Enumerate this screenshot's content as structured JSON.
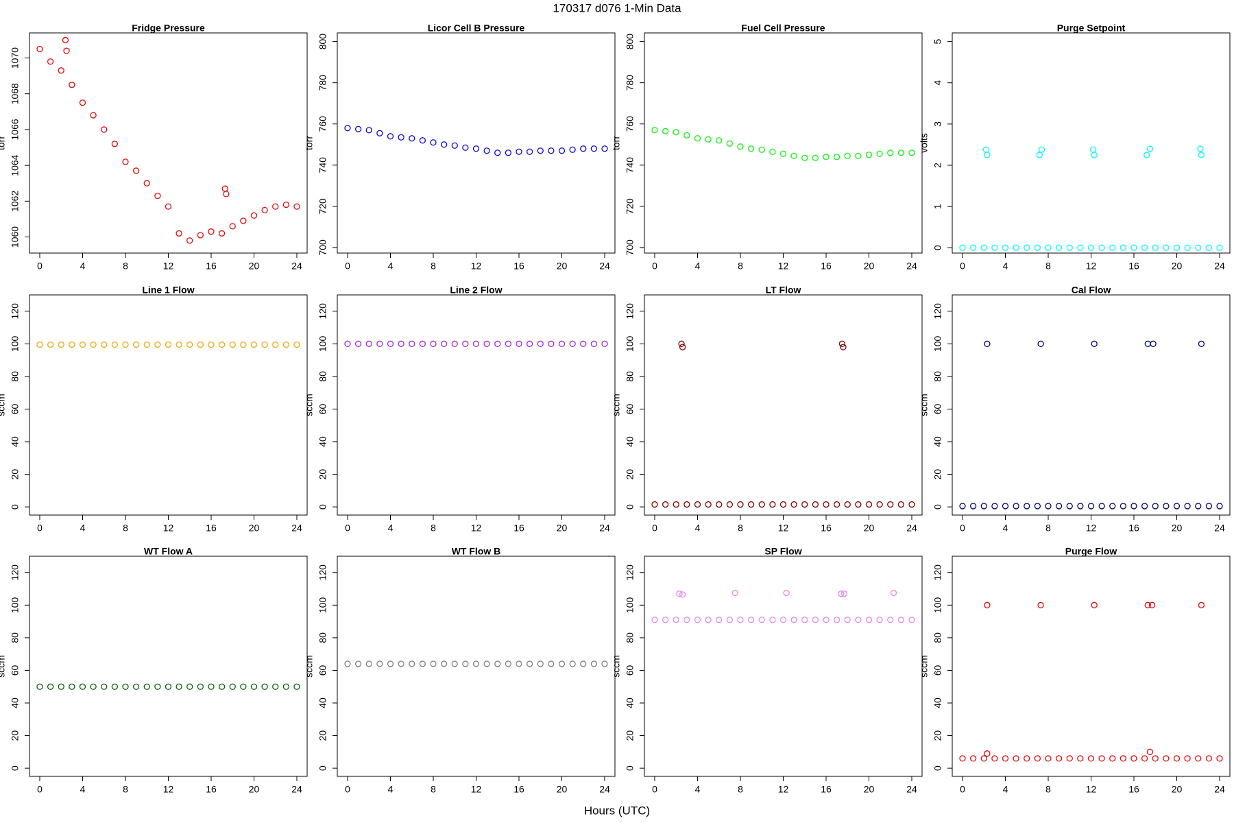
{
  "title": "170317   d076   1-Min Data",
  "x_label": "Hours (UTC)",
  "chart_data": [
    {
      "type": "scatter",
      "title": "Fridge Pressure",
      "y_label": "torr",
      "color": "#ff0000",
      "x": [
        0,
        1,
        2,
        3,
        4,
        5,
        6,
        7,
        8,
        9,
        10,
        11,
        12,
        13,
        14,
        15,
        16,
        17,
        18,
        19,
        20,
        21,
        22,
        23,
        24,
        2.4,
        2.5,
        17.3,
        17.4
      ],
      "values": [
        1070.5,
        1069.8,
        1069.3,
        1068.5,
        1067.5,
        1066.8,
        1066.0,
        1065.2,
        1064.2,
        1063.7,
        1063.0,
        1062.3,
        1061.7,
        1060.2,
        1059.8,
        1060.1,
        1060.3,
        1060.2,
        1060.6,
        1060.9,
        1061.2,
        1061.5,
        1061.7,
        1061.8,
        1061.7,
        1071.0,
        1070.4,
        1062.7,
        1062.4
      ],
      "xlim": [
        -0.96,
        24.96
      ],
      "xticks": [
        0,
        4,
        8,
        12,
        16,
        20,
        24
      ],
      "ylim": [
        1059.1,
        1071.4
      ],
      "yticks": [
        1060,
        1062,
        1064,
        1066,
        1068,
        1070
      ]
    },
    {
      "type": "scatter",
      "title": "Licor Cell B Pressure",
      "y_label": "torr",
      "color": "#0000ff",
      "x": [
        0,
        1,
        2,
        3,
        4,
        5,
        6,
        7,
        8,
        9,
        10,
        11,
        12,
        13,
        14,
        15,
        16,
        17,
        18,
        19,
        20,
        21,
        22,
        23,
        24
      ],
      "values": [
        758,
        757.5,
        757,
        755.5,
        754,
        753.5,
        753,
        752,
        751,
        750,
        749.5,
        748.5,
        748,
        747,
        746,
        746,
        746.5,
        746.5,
        747,
        747,
        747,
        747.5,
        748,
        748,
        748
      ],
      "xlim": [
        -0.96,
        24.96
      ],
      "xticks": [
        0,
        4,
        8,
        12,
        16,
        20,
        24
      ],
      "ylim": [
        697.3,
        804.2
      ],
      "yticks": [
        700,
        720,
        740,
        760,
        780,
        800
      ]
    },
    {
      "type": "scatter",
      "title": "Fuel Cell Pressure",
      "y_label": "torr",
      "color": "#00ff00",
      "x": [
        0,
        1,
        2,
        3,
        4,
        5,
        6,
        7,
        8,
        9,
        10,
        11,
        12,
        13,
        14,
        15,
        16,
        17,
        18,
        19,
        20,
        21,
        22,
        23,
        24
      ],
      "values": [
        757,
        756.5,
        756,
        754.5,
        753,
        752.5,
        752,
        750.5,
        749,
        748,
        747.5,
        746.5,
        745.5,
        744.5,
        743.5,
        743.5,
        744,
        744,
        744.5,
        744.5,
        745,
        745.5,
        746,
        746,
        746
      ],
      "xlim": [
        -0.96,
        24.96
      ],
      "xticks": [
        0,
        4,
        8,
        12,
        16,
        20,
        24
      ],
      "ylim": [
        697.3,
        804.2
      ],
      "yticks": [
        700,
        720,
        740,
        760,
        780,
        800
      ]
    },
    {
      "type": "scatter",
      "title": "Purge Setpoint",
      "y_label": "volts",
      "color": "#00ffff",
      "x": [
        0,
        1,
        2,
        3,
        4,
        5,
        6,
        7,
        8,
        9,
        10,
        11,
        12,
        13,
        14,
        15,
        16,
        17,
        18,
        19,
        20,
        21,
        22,
        23,
        24,
        2.2,
        2.3,
        7.2,
        7.4,
        12.2,
        12.3,
        17.2,
        17.5,
        22.2,
        22.3
      ],
      "values": [
        0,
        0,
        0,
        0,
        0,
        0,
        0,
        0,
        0,
        0,
        0,
        0,
        0,
        0,
        0,
        0,
        0,
        0,
        0,
        0,
        0,
        0,
        0,
        0,
        0,
        2.38,
        2.25,
        2.25,
        2.38,
        2.38,
        2.25,
        2.25,
        2.4,
        2.4,
        2.25
      ],
      "xlim": [
        -0.96,
        24.96
      ],
      "xticks": [
        0,
        4,
        8,
        12,
        16,
        20,
        24
      ],
      "ylim": [
        -0.13,
        5.21
      ],
      "yticks": [
        0,
        1,
        2,
        3,
        4,
        5
      ]
    },
    {
      "type": "scatter",
      "title": "Line 1 Flow",
      "y_label": "sccm",
      "color": "#ffa500",
      "x": [
        0,
        1,
        2,
        3,
        4,
        5,
        6,
        7,
        8,
        9,
        10,
        11,
        12,
        13,
        14,
        15,
        16,
        17,
        18,
        19,
        20,
        21,
        22,
        23,
        24
      ],
      "values": [
        99.5,
        99.5,
        99.5,
        99.5,
        99.5,
        99.5,
        99.5,
        99.5,
        99.5,
        99.5,
        99.5,
        99.5,
        99.5,
        99.5,
        99.5,
        99.5,
        99.5,
        99.5,
        99.5,
        99.5,
        99.5,
        99.5,
        99.5,
        99.5,
        99.5
      ],
      "xlim": [
        -0.96,
        24.96
      ],
      "xticks": [
        0,
        4,
        8,
        12,
        16,
        20,
        24
      ],
      "ylim": [
        -5,
        130
      ],
      "yticks": [
        0,
        20,
        40,
        60,
        80,
        100,
        120
      ]
    },
    {
      "type": "scatter",
      "title": "Line 2 Flow",
      "y_label": "sccm",
      "color": "#a020f0",
      "x": [
        0,
        1,
        2,
        3,
        4,
        5,
        6,
        7,
        8,
        9,
        10,
        11,
        12,
        13,
        14,
        15,
        16,
        17,
        18,
        19,
        20,
        21,
        22,
        23,
        24
      ],
      "values": [
        100,
        100,
        100,
        100,
        100,
        100,
        100,
        100,
        100,
        100,
        100,
        100,
        100,
        100,
        100,
        100,
        100,
        100,
        100,
        100,
        100,
        100,
        100,
        100,
        100
      ],
      "xlim": [
        -0.96,
        24.96
      ],
      "xticks": [
        0,
        4,
        8,
        12,
        16,
        20,
        24
      ],
      "ylim": [
        -5,
        130
      ],
      "yticks": [
        0,
        20,
        40,
        60,
        80,
        100,
        120
      ]
    },
    {
      "type": "scatter",
      "title": "LT Flow",
      "y_label": "sccm",
      "color": "#8b0000",
      "x": [
        0,
        1,
        2,
        3,
        4,
        5,
        6,
        7,
        8,
        9,
        10,
        11,
        12,
        13,
        14,
        15,
        16,
        17,
        18,
        19,
        20,
        21,
        22,
        23,
        24,
        2.5,
        2.6,
        17.5,
        17.6
      ],
      "values": [
        1.5,
        1.5,
        1.5,
        1.5,
        1.5,
        1.5,
        1.5,
        1.5,
        1.5,
        1.5,
        1.5,
        1.5,
        1.5,
        1.5,
        1.5,
        1.5,
        1.5,
        1.5,
        1.5,
        1.5,
        1.5,
        1.5,
        1.5,
        1.5,
        1.5,
        100,
        98,
        100,
        98
      ],
      "xlim": [
        -0.96,
        24.96
      ],
      "xticks": [
        0,
        4,
        8,
        12,
        16,
        20,
        24
      ],
      "ylim": [
        -5,
        130
      ],
      "yticks": [
        0,
        20,
        40,
        60,
        80,
        100,
        120
      ]
    },
    {
      "type": "scatter",
      "title": "Cal Flow",
      "y_label": "sccm",
      "color": "#000080",
      "x": [
        0,
        1,
        2,
        3,
        4,
        5,
        6,
        7,
        8,
        9,
        10,
        11,
        12,
        13,
        14,
        15,
        16,
        17,
        18,
        19,
        20,
        21,
        22,
        23,
        24,
        2.3,
        7.3,
        12.3,
        17.3,
        17.8,
        22.3
      ],
      "values": [
        0.5,
        0.5,
        0.5,
        0.5,
        0.5,
        0.5,
        0.5,
        0.5,
        0.5,
        0.5,
        0.5,
        0.5,
        0.5,
        0.5,
        0.5,
        0.5,
        0.5,
        0.5,
        0.5,
        0.5,
        0.5,
        0.5,
        0.5,
        0.5,
        0.5,
        100,
        100,
        100,
        100,
        100,
        100
      ],
      "xlim": [
        -0.96,
        24.96
      ],
      "xticks": [
        0,
        4,
        8,
        12,
        16,
        20,
        24
      ],
      "ylim": [
        -5,
        130
      ],
      "yticks": [
        0,
        20,
        40,
        60,
        80,
        100,
        120
      ]
    },
    {
      "type": "scatter",
      "title": "WT Flow A",
      "y_label": "sccm",
      "color": "#006400",
      "x": [
        0,
        1,
        2,
        3,
        4,
        5,
        6,
        7,
        8,
        9,
        10,
        11,
        12,
        13,
        14,
        15,
        16,
        17,
        18,
        19,
        20,
        21,
        22,
        23,
        24
      ],
      "values": [
        50,
        50,
        50,
        50,
        50,
        50,
        50,
        50,
        50,
        50,
        50,
        50,
        50,
        50,
        50,
        50,
        50,
        50,
        50,
        50,
        50,
        50,
        50,
        50,
        50
      ],
      "xlim": [
        -0.96,
        24.96
      ],
      "xticks": [
        0,
        4,
        8,
        12,
        16,
        20,
        24
      ],
      "ylim": [
        -5,
        130
      ],
      "yticks": [
        0,
        20,
        40,
        60,
        80,
        100,
        120
      ]
    },
    {
      "type": "scatter",
      "title": "WT Flow B",
      "y_label": "sccm",
      "color": "#808080",
      "x": [
        0,
        1,
        2,
        3,
        4,
        5,
        6,
        7,
        8,
        9,
        10,
        11,
        12,
        13,
        14,
        15,
        16,
        17,
        18,
        19,
        20,
        21,
        22,
        23,
        24
      ],
      "values": [
        64,
        64,
        64,
        64,
        64,
        64,
        64,
        64,
        64,
        64,
        64,
        64,
        64,
        64,
        64,
        64,
        64,
        64,
        64,
        64,
        64,
        64,
        64,
        64,
        64
      ],
      "xlim": [
        -0.96,
        24.96
      ],
      "xticks": [
        0,
        4,
        8,
        12,
        16,
        20,
        24
      ],
      "ylim": [
        -5,
        130
      ],
      "yticks": [
        0,
        20,
        40,
        60,
        80,
        100,
        120
      ]
    },
    {
      "type": "scatter",
      "title": "SP Flow",
      "y_label": "sccm",
      "color": "#ee82ee",
      "x": [
        0,
        1,
        2,
        3,
        4,
        5,
        6,
        7,
        8,
        9,
        10,
        11,
        12,
        13,
        14,
        15,
        16,
        17,
        18,
        19,
        20,
        21,
        22,
        23,
        24,
        2.3,
        2.6,
        7.5,
        12.3,
        17.4,
        17.7,
        22.3
      ],
      "values": [
        91,
        91,
        91,
        91,
        91,
        91,
        91,
        91,
        91,
        91,
        91,
        91,
        91,
        91,
        91,
        91,
        91,
        91,
        91,
        91,
        91,
        91,
        91,
        91,
        91,
        107,
        106.5,
        107.5,
        107.5,
        107,
        107,
        107.5
      ],
      "xlim": [
        -0.96,
        24.96
      ],
      "xticks": [
        0,
        4,
        8,
        12,
        16,
        20,
        24
      ],
      "ylim": [
        -5,
        130
      ],
      "yticks": [
        0,
        20,
        40,
        60,
        80,
        100,
        120
      ]
    },
    {
      "type": "scatter",
      "title": "Purge Flow",
      "y_label": "sccm",
      "color": "#ff0000",
      "x": [
        0,
        1,
        2,
        3,
        4,
        5,
        6,
        7,
        8,
        9,
        10,
        11,
        12,
        13,
        14,
        15,
        16,
        17,
        18,
        19,
        20,
        21,
        22,
        23,
        24,
        2.3,
        17.5,
        2.3,
        7.3,
        12.3,
        17.3,
        17.7,
        22.3
      ],
      "values": [
        6,
        6,
        6,
        6,
        6,
        6,
        6,
        6,
        6,
        6,
        6,
        6,
        6,
        6,
        6,
        6,
        6,
        6,
        6,
        6,
        6,
        6,
        6,
        6,
        6,
        9,
        10,
        100,
        100,
        100,
        100,
        100,
        100
      ],
      "xlim": [
        -0.96,
        24.96
      ],
      "xticks": [
        0,
        4,
        8,
        12,
        16,
        20,
        24
      ],
      "ylim": [
        -5,
        130
      ],
      "yticks": [
        0,
        20,
        40,
        60,
        80,
        100,
        120
      ]
    }
  ]
}
